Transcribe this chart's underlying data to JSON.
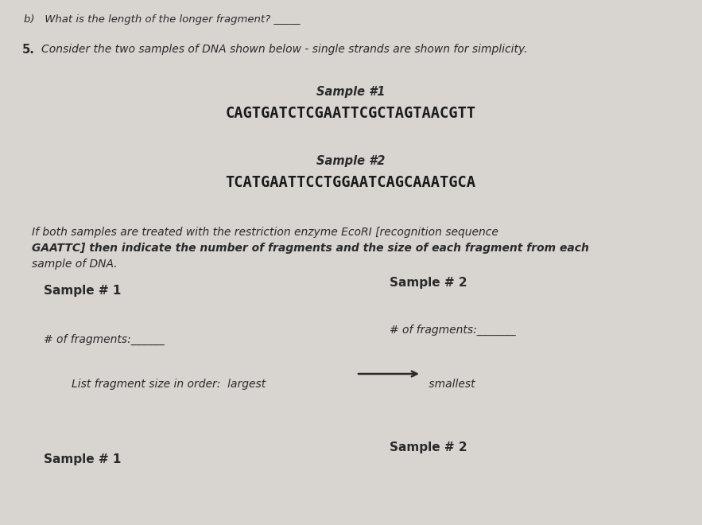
{
  "page_bg": "#d8d5d0",
  "content_bg": "#e8e6e2",
  "title_top": "b)   What is the length of the longer fragment? _____",
  "question_number": "5.",
  "question_text": "Consider the two samples of DNA shown below - single strands are shown for simplicity.",
  "sample1_label": "Sample #1",
  "sample1_seq": "CAGTGATCTCGAATTCGCTAGTAACGTT",
  "sample2_label": "Sample #2",
  "sample2_seq": "TCATGAATTCCTGGAATCAGCAAATGCA",
  "para_line1": "If both samples are treated with the restriction enzyme EcoRI [recognition sequence",
  "para_line2": "GAATTC] then indicate the number of fragments and the size of each fragment from each",
  "para_line3": "sample of DNA.",
  "col1_header": "Sample # 1",
  "col2_header": "Sample # 2",
  "fragments_label1": "# of fragments:______",
  "fragments_label2": "# of fragments:_______",
  "list_text_left": "List fragment size in order:  largest ",
  "list_text_right": " smallest",
  "bottom_col1": "Sample # 1",
  "bottom_col2": "Sample # 2",
  "text_color": "#2a2a2a",
  "seq_color": "#1a1a1a"
}
